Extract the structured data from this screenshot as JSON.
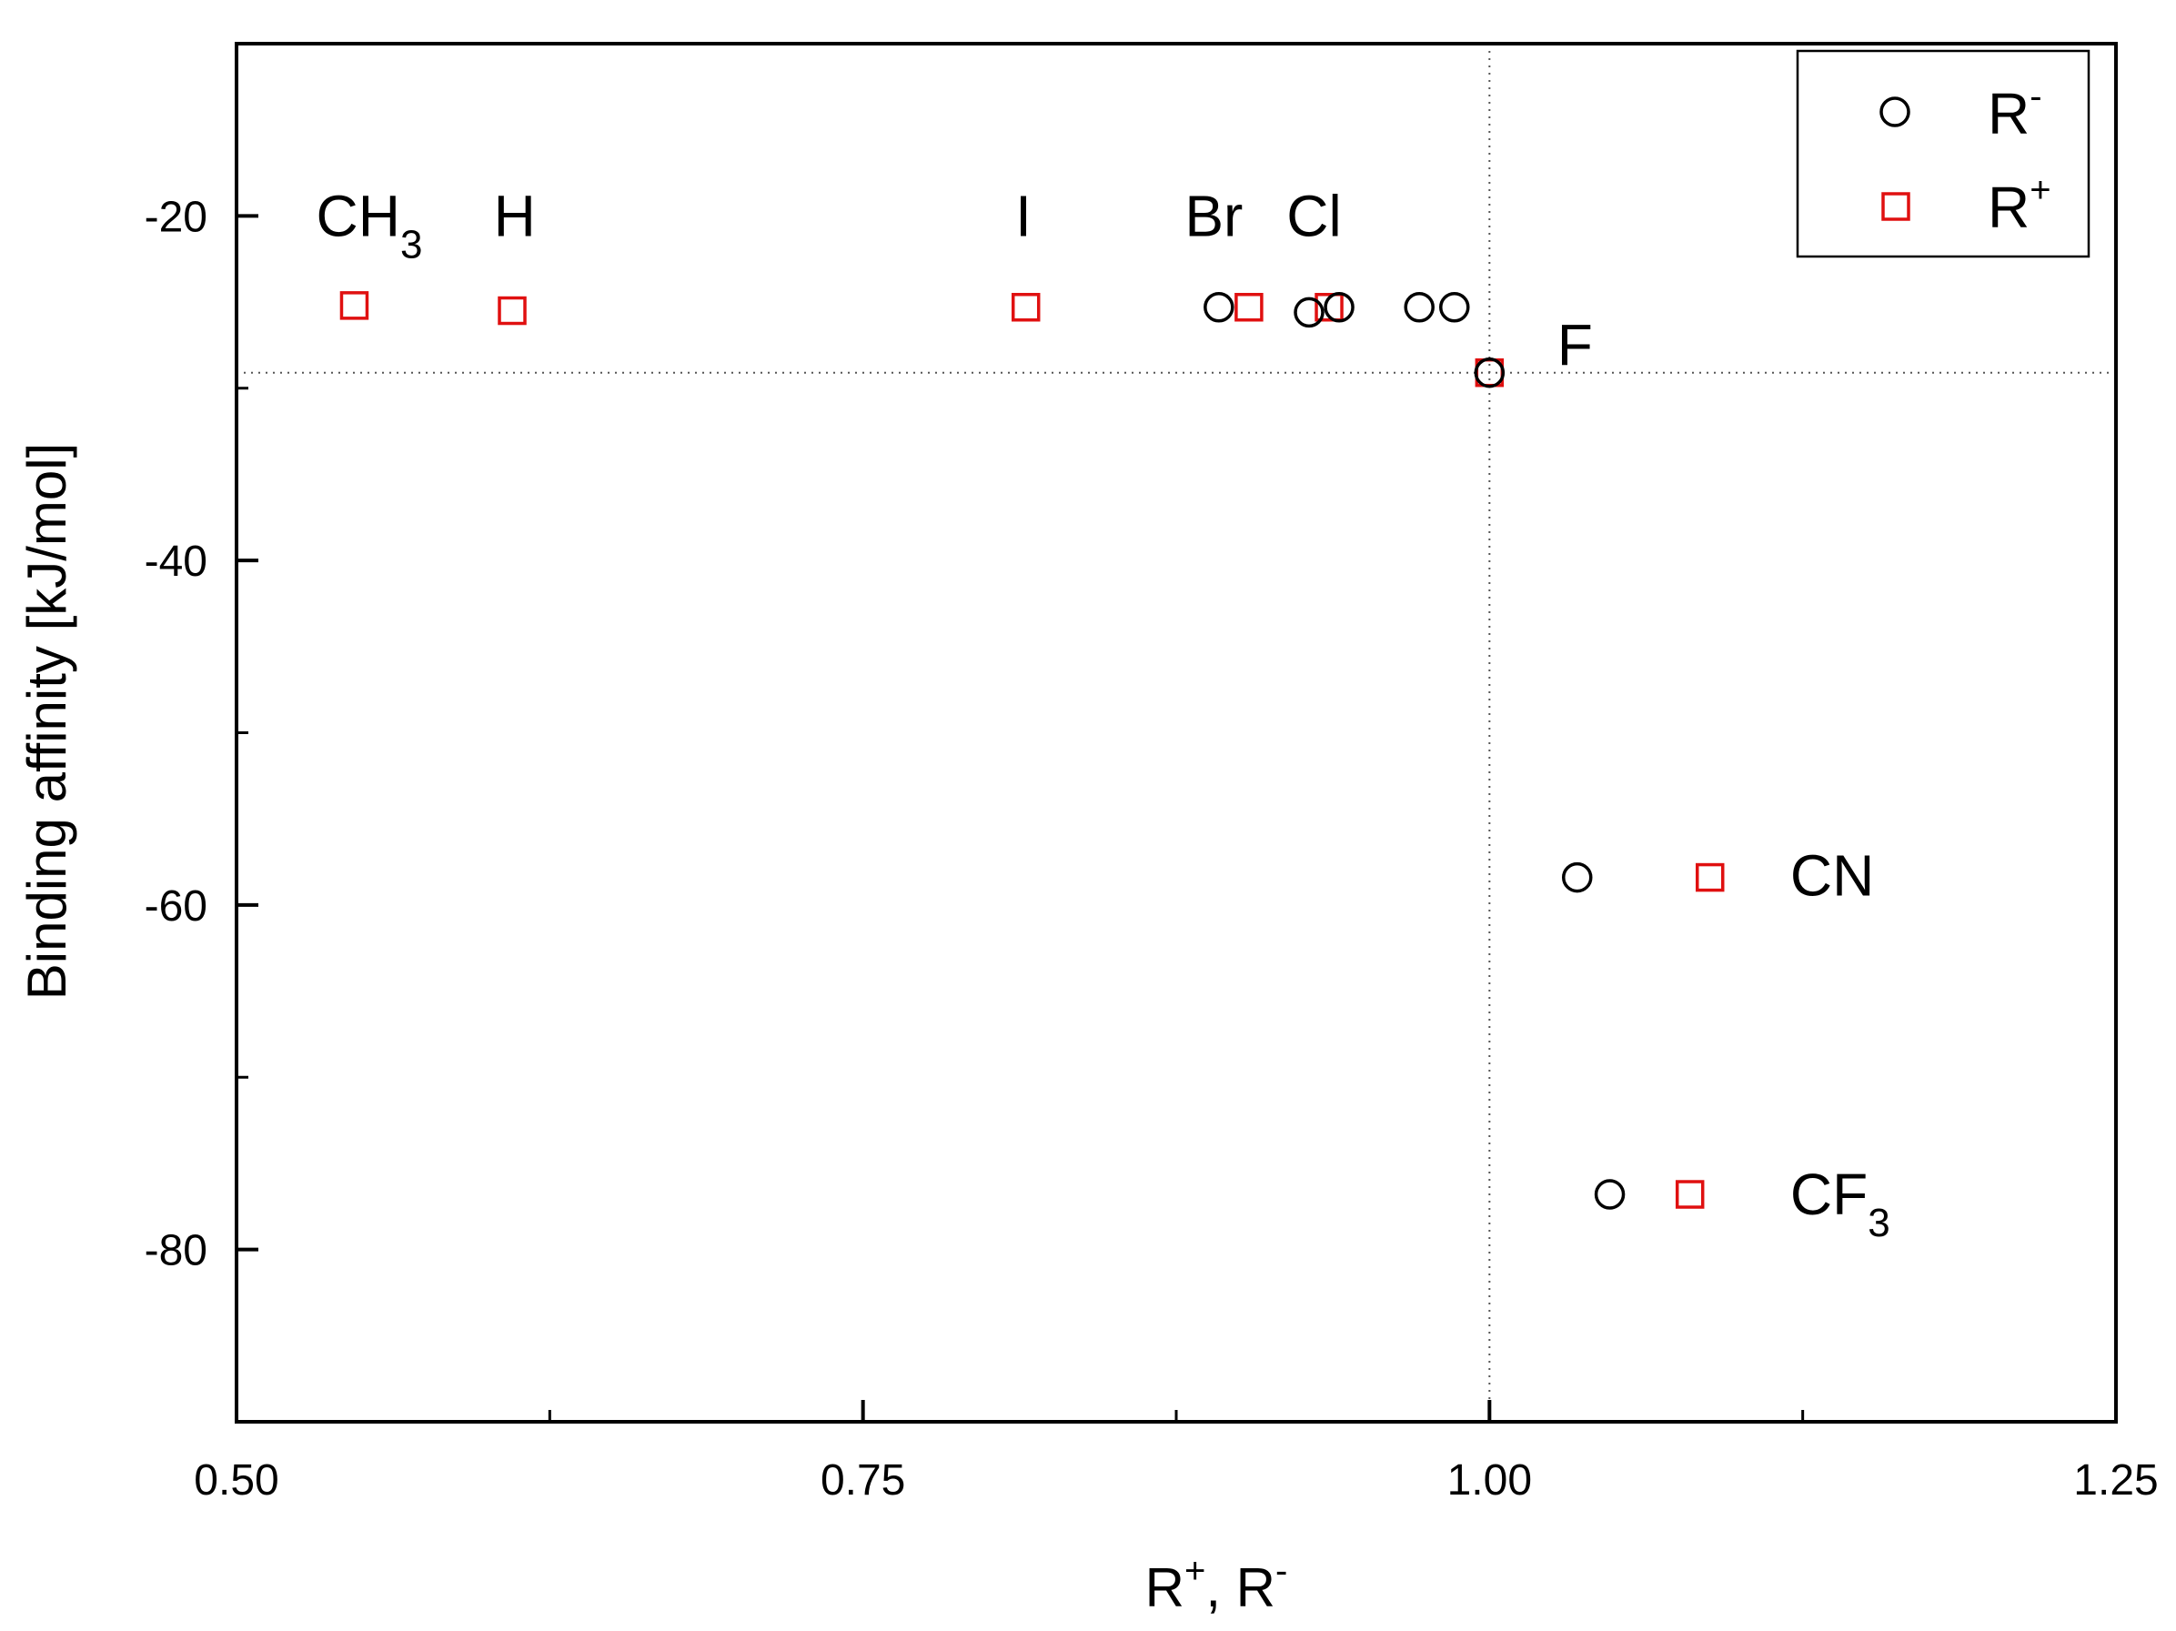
{
  "chart_data": {
    "type": "scatter",
    "xlabel": {
      "base1": "R",
      "sup1": "+",
      "mid": ", R",
      "sup2": "-"
    },
    "ylabel": "Binding affinity [kJ/mol]",
    "xlim": [
      0.5,
      1.25
    ],
    "ylim": [
      -90,
      -10
    ],
    "x_ticks": [
      0.5,
      0.75,
      1.0,
      1.25
    ],
    "x_tick_labels": [
      "0.50",
      "0.75",
      "1.00",
      "1.25"
    ],
    "x_minor_ticks": [
      0.625,
      0.875,
      1.125
    ],
    "y_ticks": [
      -20,
      -40,
      -60,
      -80
    ],
    "y_tick_labels": [
      "-20",
      "-40",
      "-60",
      "-80"
    ],
    "y_minor_ticks": [
      -30,
      -50,
      -70
    ],
    "reference_lines": {
      "x": 1.0,
      "y": -29.1
    },
    "legend": {
      "position": "top-right",
      "entries": [
        {
          "base": "R",
          "sup": "-",
          "marker": "circle",
          "color": "#000000"
        },
        {
          "base": "R",
          "sup": "+",
          "marker": "square",
          "color": "#e01010"
        }
      ]
    },
    "series": [
      {
        "name": "R-",
        "marker": "circle",
        "color": "#000000",
        "points": [
          {
            "x": 0.892,
            "y": -25.3
          },
          {
            "x": 0.928,
            "y": -25.6
          },
          {
            "x": 0.94,
            "y": -25.3
          },
          {
            "x": 0.972,
            "y": -25.3
          },
          {
            "x": 0.986,
            "y": -25.3
          },
          {
            "x": 1.0,
            "y": -29.1
          },
          {
            "x": 1.035,
            "y": -58.4
          },
          {
            "x": 1.048,
            "y": -76.8
          }
        ]
      },
      {
        "name": "R+",
        "marker": "square",
        "color": "#e01010",
        "points": [
          {
            "x": 0.547,
            "y": -25.2
          },
          {
            "x": 0.61,
            "y": -25.5
          },
          {
            "x": 0.815,
            "y": -25.3
          },
          {
            "x": 0.904,
            "y": -25.3
          },
          {
            "x": 0.936,
            "y": -25.3
          },
          {
            "x": 1.0,
            "y": -29.1
          },
          {
            "x": 1.088,
            "y": -58.4
          },
          {
            "x": 1.08,
            "y": -76.8
          }
        ]
      }
    ],
    "annotations": [
      {
        "base": "CH",
        "sub": "3",
        "x": 0.553,
        "y": -20.0
      },
      {
        "base": "H",
        "sub": "",
        "x": 0.611,
        "y": -20.0
      },
      {
        "base": "I",
        "sub": "",
        "x": 0.814,
        "y": -20.0
      },
      {
        "base": "Br",
        "sub": "",
        "x": 0.89,
        "y": -20.0
      },
      {
        "base": "Cl",
        "sub": "",
        "x": 0.93,
        "y": -20.0
      },
      {
        "base": "F",
        "sub": "",
        "x": 1.027,
        "y": -27.5
      },
      {
        "base": "CN",
        "sub": "",
        "x": 1.12,
        "y": -58.3
      },
      {
        "base": "CF",
        "sub": "3",
        "x": 1.12,
        "y": -76.8
      }
    ]
  }
}
